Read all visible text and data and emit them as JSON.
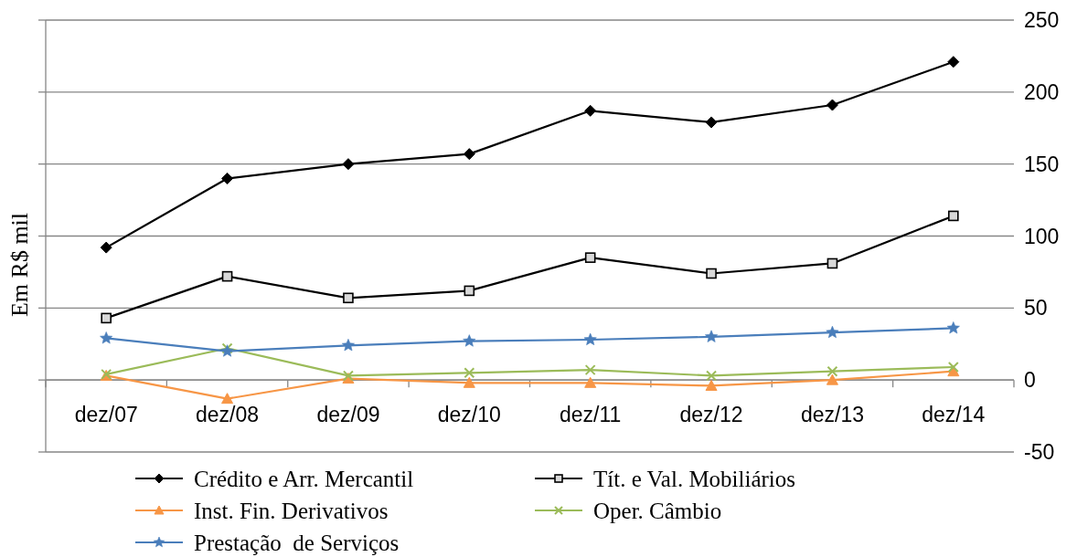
{
  "chart_data": {
    "type": "line",
    "ylabel": "Em R$ mil",
    "categories": [
      "dez/07",
      "dez/08",
      "dez/09",
      "dez/10",
      "dez/11",
      "dez/12",
      "dez/13",
      "dez/14"
    ],
    "series": [
      {
        "name": "Crédito e Arr. Mercantil",
        "color": "#000000",
        "marker": "diamond",
        "values": [
          92,
          140,
          150,
          157,
          187,
          179,
          191,
          221
        ]
      },
      {
        "name": "Tít. e Val. Mobiliários",
        "color": "#000000",
        "marker": "square",
        "values": [
          43,
          72,
          57,
          62,
          85,
          74,
          81,
          114
        ]
      },
      {
        "name": "Inst. Fin. Derivativos",
        "color": "#f79646",
        "marker": "triangle",
        "values": [
          3,
          -13,
          1,
          -2,
          -2,
          -4,
          0,
          6
        ]
      },
      {
        "name": "Oper. Câmbio",
        "color": "#9bbb59",
        "marker": "cross",
        "values": [
          4,
          22,
          3,
          5,
          7,
          3,
          6,
          9
        ]
      },
      {
        "name": "Prestação  de Serviços",
        "color": "#4a7ebb",
        "marker": "star",
        "values": [
          29,
          20,
          24,
          27,
          28,
          30,
          33,
          36
        ]
      }
    ],
    "ylim": [
      -50,
      250
    ],
    "yticks": [
      -50,
      0,
      50,
      100,
      150,
      200,
      250
    ],
    "grid": "y",
    "legend": "bottom"
  }
}
